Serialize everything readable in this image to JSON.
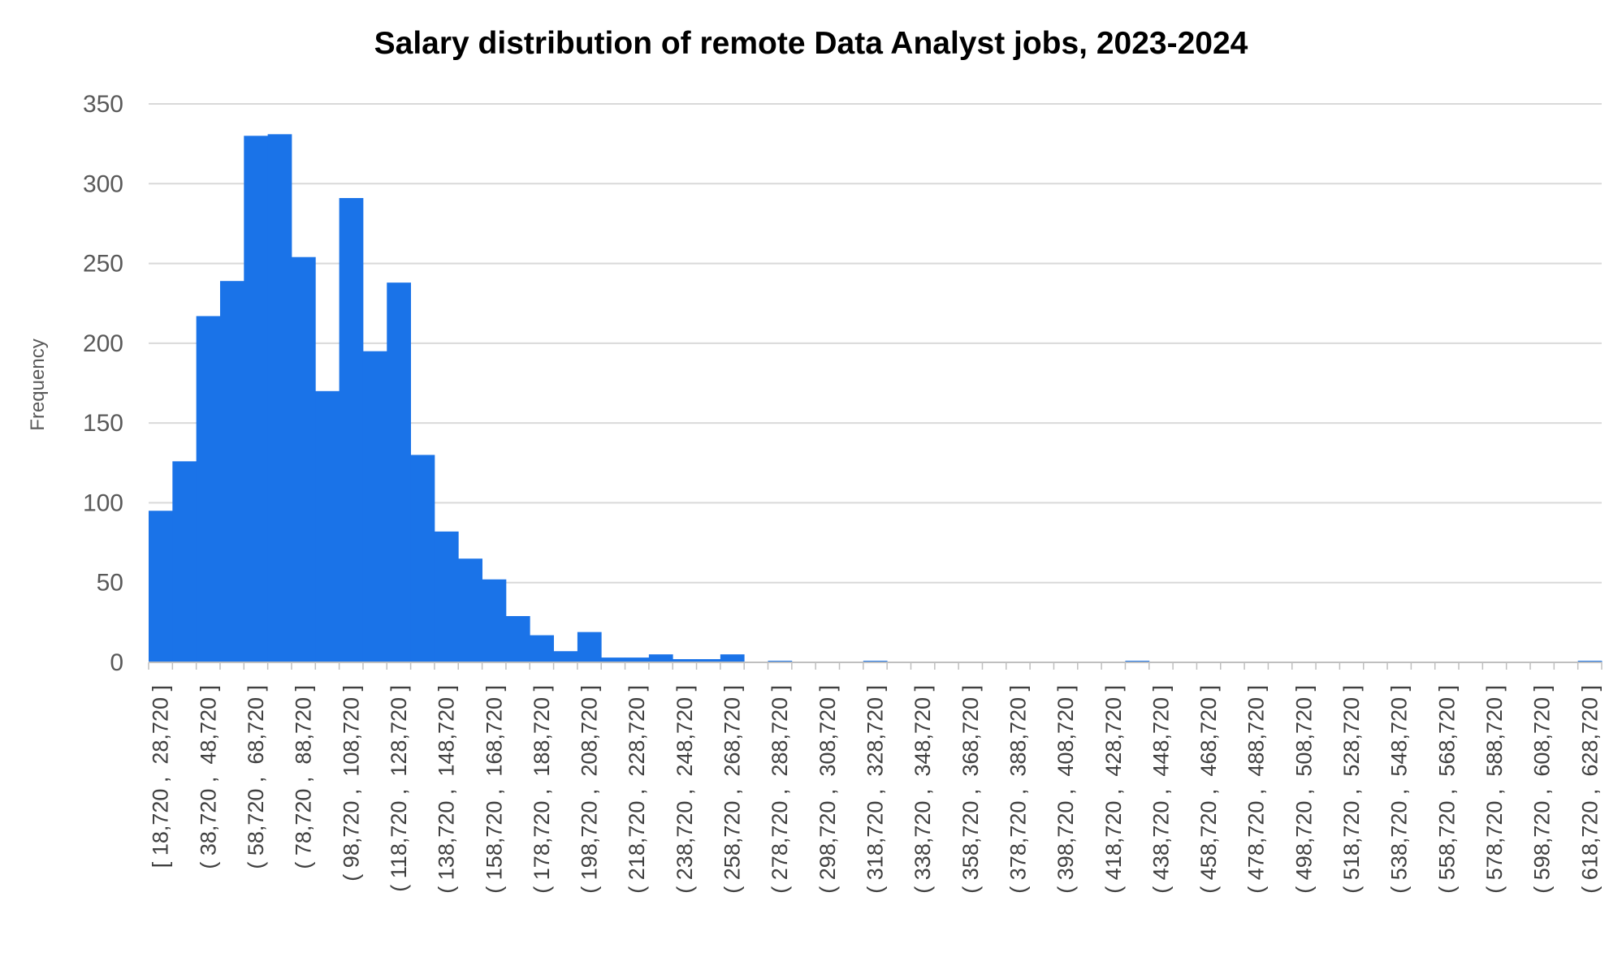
{
  "chart_data": {
    "type": "bar",
    "title": "Salary distribution of remote Data Analyst jobs, 2023-2024",
    "xlabel": "",
    "ylabel": "Frequency",
    "ylim": [
      0,
      350
    ],
    "yticks": [
      0,
      50,
      100,
      150,
      200,
      250,
      300,
      350
    ],
    "grid": true,
    "colors": {
      "bar": "#1a73e8",
      "grid": "#d9d9d9",
      "axis": "#bfbfbf"
    },
    "values": [
      95,
      126,
      217,
      239,
      330,
      331,
      254,
      170,
      291,
      195,
      238,
      130,
      82,
      65,
      52,
      29,
      17,
      7,
      19,
      3,
      3,
      5,
      2,
      2,
      5,
      0,
      1,
      0,
      0,
      0,
      1,
      0,
      0,
      0,
      0,
      0,
      0,
      0,
      0,
      0,
      0,
      1,
      0,
      0,
      0,
      0,
      0,
      0,
      0,
      0,
      0,
      0,
      0,
      0,
      0,
      0,
      0,
      0,
      0,
      0,
      1
    ],
    "bin_width_note": "61 bins of width 10,000; labels shown every other bin",
    "tick_labels": [
      "[ 18,720 ,  28,720 ]",
      "( 38,720 ,  48,720 ]",
      "( 58,720 ,  68,720 ]",
      "( 78,720 ,  88,720 ]",
      "( 98,720 ,  108,720 ]",
      "( 118,720 ,  128,720 ]",
      "( 138,720 ,  148,720 ]",
      "( 158,720 ,  168,720 ]",
      "( 178,720 ,  188,720 ]",
      "( 198,720 ,  208,720 ]",
      "( 218,720 ,  228,720 ]",
      "( 238,720 ,  248,720 ]",
      "( 258,720 ,  268,720 ]",
      "( 278,720 ,  288,720 ]",
      "( 298,720 ,  308,720 ]",
      "( 318,720 ,  328,720 ]",
      "( 338,720 ,  348,720 ]",
      "( 358,720 ,  368,720 ]",
      "( 378,720 ,  388,720 ]",
      "( 398,720 ,  408,720 ]",
      "( 418,720 ,  428,720 ]",
      "( 438,720 ,  448,720 ]",
      "( 458,720 ,  468,720 ]",
      "( 478,720 ,  488,720 ]",
      "( 498,720 ,  508,720 ]",
      "( 518,720 ,  528,720 ]",
      "( 538,720 ,  548,720 ]",
      "( 558,720 ,  568,720 ]",
      "( 578,720 ,  588,720 ]",
      "( 598,720 ,  608,720 ]",
      "( 618,720 ,  628,720 ]"
    ]
  }
}
